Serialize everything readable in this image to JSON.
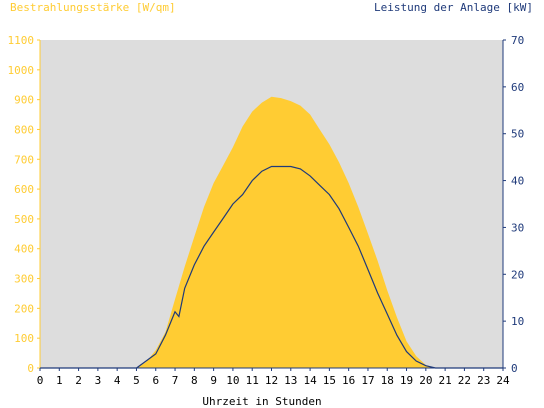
{
  "chart_data": {
    "type": "area",
    "title": "",
    "left_axis_label": "Bestrahlungsstärke [W/qm]",
    "right_axis_label": "Leistung der Anlage [kW]",
    "xlabel": "Uhrzeit in Stunden",
    "xlim": [
      0,
      24
    ],
    "ylim_left": [
      0,
      1100
    ],
    "ylim_right": [
      0,
      70
    ],
    "x_ticks": [
      "0",
      "1",
      "2",
      "3",
      "4",
      "5",
      "6",
      "7",
      "8",
      "9",
      "10",
      "11",
      "12",
      "13",
      "14",
      "15",
      "16",
      "17",
      "18",
      "19",
      "20",
      "21",
      "22",
      "23",
      "24"
    ],
    "y_left_ticks": [
      "0",
      "100",
      "200",
      "300",
      "400",
      "500",
      "600",
      "700",
      "800",
      "900",
      "1000",
      "1100"
    ],
    "y_right_ticks": [
      "0",
      "10",
      "20",
      "30",
      "40",
      "50",
      "60",
      "70"
    ],
    "grid": false,
    "colors": {
      "plot_background": "#dddddd",
      "area_fill": "#ffcc33",
      "line": "#1f3a7a",
      "left_axis": "#ffcc33",
      "right_axis": "#1f3a7a"
    },
    "series": [
      {
        "name": "Bestrahlungsstärke [W/qm]",
        "axis": "left",
        "style": "area",
        "x": [
          0,
          5,
          5.5,
          6,
          6.5,
          7,
          7.5,
          8,
          8.5,
          9,
          9.5,
          10,
          10.5,
          11,
          11.5,
          12,
          12.5,
          13,
          13.5,
          14,
          14.5,
          15,
          15.5,
          16,
          16.5,
          17,
          17.5,
          18,
          18.5,
          19,
          19.5,
          20,
          20.5,
          24
        ],
        "y": [
          0,
          0,
          20,
          60,
          120,
          230,
          340,
          440,
          540,
          620,
          680,
          740,
          810,
          860,
          890,
          910,
          905,
          895,
          880,
          850,
          800,
          750,
          690,
          620,
          540,
          450,
          360,
          260,
          170,
          90,
          40,
          10,
          0,
          0
        ]
      },
      {
        "name": "Leistung der Anlage [kW]",
        "axis": "right",
        "style": "line",
        "x": [
          0,
          5,
          5.5,
          6,
          6.5,
          7,
          7.2,
          7.5,
          8,
          8.5,
          9,
          9.5,
          10,
          10.5,
          11,
          11.5,
          12,
          12.5,
          13,
          13.5,
          14,
          14.5,
          15,
          15.5,
          16,
          16.5,
          17,
          17.5,
          18,
          18.5,
          19,
          19.5,
          20,
          20.5,
          24
        ],
        "y": [
          0,
          0,
          1.5,
          3,
          7,
          12,
          11,
          17,
          22,
          26,
          29,
          32,
          35,
          37,
          40,
          42,
          43,
          43,
          43,
          42.5,
          41,
          39,
          37,
          34,
          30,
          26,
          21,
          16,
          11.5,
          7,
          3.5,
          1.5,
          0.5,
          0,
          0
        ]
      }
    ]
  }
}
